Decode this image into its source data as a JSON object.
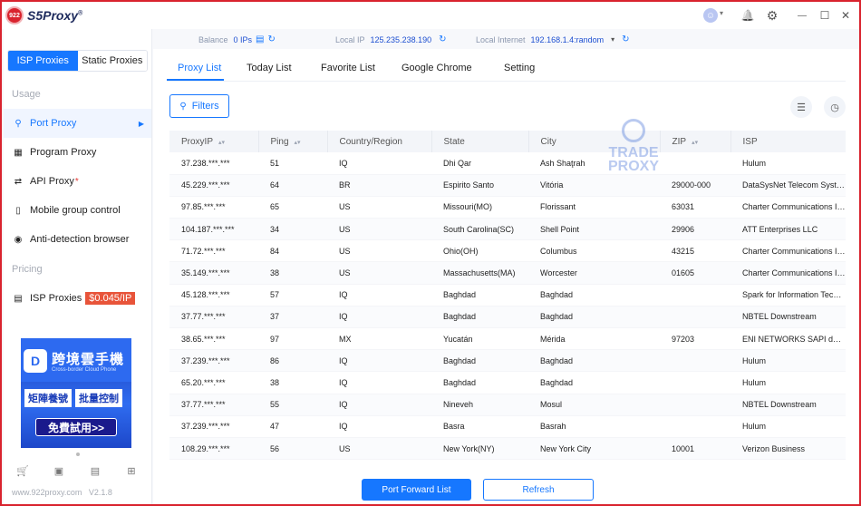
{
  "app": {
    "logo_badge": "922",
    "name": "S5Proxy",
    "trademark": "®"
  },
  "titlebar": {
    "avatar": "☺",
    "dropdown": "▾",
    "bell": "🔔",
    "settings": "⚙",
    "minimize": "—",
    "maximize": "☐",
    "close": "✕"
  },
  "sidebar": {
    "seg_isp": "ISP Proxies",
    "seg_static": "Static Proxies",
    "usage_label": "Usage",
    "items": [
      {
        "label": "Port Proxy",
        "icon": "⚲"
      },
      {
        "label": "Program Proxy",
        "icon": "▦"
      },
      {
        "label": "API Proxy",
        "icon": "⇄",
        "dot": "*"
      },
      {
        "label": "Mobile group control",
        "icon": "▯"
      },
      {
        "label": "Anti-detection browser",
        "icon": "◉"
      }
    ],
    "pricing_label": "Pricing",
    "isp_item": {
      "label": "ISP Proxies",
      "icon": "▤",
      "price": "$0.045/IP"
    },
    "ad": {
      "logo": "D",
      "title": "跨境雲手機",
      "subtitle": "Cross-border Cloud Phone",
      "tag1": "矩陣養號",
      "tag2": "批量控制",
      "cta": "免費試用>>"
    },
    "bottom_icons": [
      "🛒",
      "▣",
      "▤",
      "⊞"
    ],
    "footer": "www.922proxy.com   V2.1.8"
  },
  "status": {
    "balance_label": "Balance",
    "balance_value": "0 IPs",
    "local_ip_label": "Local IP",
    "local_ip_value": "125.235.238.190",
    "local_internet_label": "Local Internet",
    "local_internet_value": "192.168.1.4:random",
    "dropdown": "▾",
    "refresh": "↻"
  },
  "tabs": [
    "Proxy List",
    "Today List",
    "Favorite List",
    "Google Chrome",
    "Setting"
  ],
  "toolbar": {
    "filters": "Filters",
    "filters_icon": "⚲",
    "list_icon": "☰",
    "clock_icon": "◷"
  },
  "watermark": {
    "line1": "TRADE",
    "line2": "PROXY"
  },
  "table": {
    "headers": [
      "ProxyIP",
      "Ping",
      "Country/Region",
      "State",
      "City",
      "ZIP",
      "ISP"
    ],
    "sort_icon": "▴▾",
    "rows": [
      [
        "37.238.***.***",
        "51",
        "IQ",
        "Dhi Qar",
        "Ash Shaţrah",
        "",
        "Hulum"
      ],
      [
        "45.229.***.***",
        "64",
        "BR",
        "Espirito Santo",
        "Vitória",
        "29000-000",
        "DataSysNet Telecom Systems"
      ],
      [
        "97.85.***.***",
        "65",
        "US",
        "Missouri(MO)",
        "Florissant",
        "63031",
        "Charter Communications Inc"
      ],
      [
        "104.187.***.***",
        "34",
        "US",
        "South Carolina(SC)",
        "Shell Point",
        "29906",
        "ATT Enterprises LLC"
      ],
      [
        "71.72.***.***",
        "84",
        "US",
        "Ohio(OH)",
        "Columbus",
        "43215",
        "Charter Communications Inc"
      ],
      [
        "35.149.***.***",
        "38",
        "US",
        "Massachusetts(MA)",
        "Worcester",
        "01605",
        "Charter Communications Inc"
      ],
      [
        "45.128.***.***",
        "57",
        "IQ",
        "Baghdad",
        "Baghdad",
        "",
        "Spark for Information Technology"
      ],
      [
        "37.77.***.***",
        "37",
        "IQ",
        "Baghdad",
        "Baghdad",
        "",
        "NBTEL Downstream"
      ],
      [
        "38.65.***.***",
        "97",
        "MX",
        "Yucatán",
        "Mérida",
        "97203",
        "ENI NETWORKS SAPI de CV"
      ],
      [
        "37.239.***.***",
        "86",
        "IQ",
        "Baghdad",
        "Baghdad",
        "",
        "Hulum"
      ],
      [
        "65.20.***.***",
        "38",
        "IQ",
        "Baghdad",
        "Baghdad",
        "",
        "Hulum"
      ],
      [
        "37.77.***.***",
        "55",
        "IQ",
        "Nineveh",
        "Mosul",
        "",
        "NBTEL Downstream"
      ],
      [
        "37.239.***.***",
        "47",
        "IQ",
        "Basra",
        "Basrah",
        "",
        "Hulum"
      ],
      [
        "108.29.***.***",
        "56",
        "US",
        "New York(NY)",
        "New York City",
        "10001",
        "Verizon Business"
      ]
    ]
  },
  "buttons": {
    "port_forward": "Port Forward List",
    "refresh": "Refresh"
  }
}
